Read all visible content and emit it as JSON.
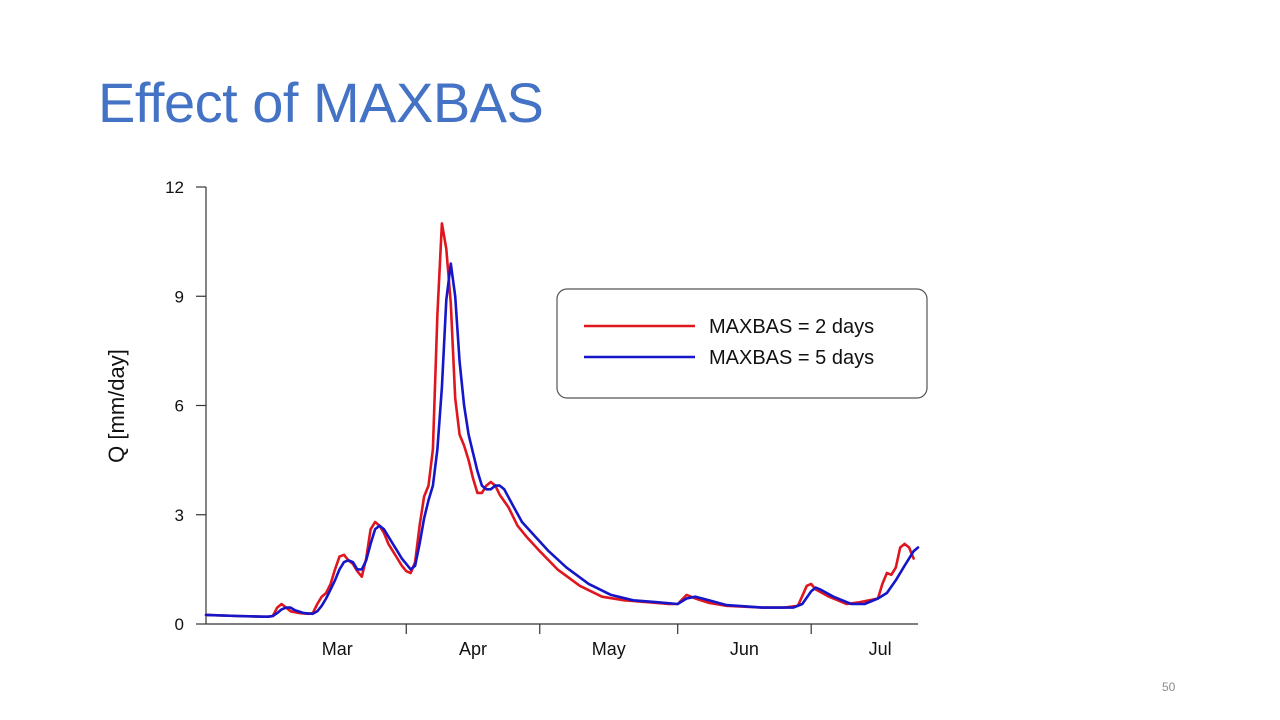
{
  "slide": {
    "title": "Effect of MAXBAS",
    "page_number": "50"
  },
  "colors": {
    "title": "#4472c4",
    "series_2": "#e0161f",
    "series_5": "#1515c9"
  },
  "chart_data": {
    "type": "line",
    "title": "",
    "xlabel": "",
    "ylabel": "Q [mm/day]",
    "xlim": [
      "03-01",
      "07-31"
    ],
    "ylim": [
      0,
      12
    ],
    "yticks": [
      0,
      3,
      6,
      9,
      12
    ],
    "xticks": [
      {
        "label": "Mar",
        "month_start": "03-01"
      },
      {
        "label": "Apr",
        "month_start": "04-01"
      },
      {
        "label": "May",
        "month_start": "05-01"
      },
      {
        "label": "Jun",
        "month_start": "06-01"
      },
      {
        "label": "Jul",
        "month_start": "07-01"
      }
    ],
    "grid": false,
    "legend_position": "top-right",
    "series": [
      {
        "name": "MAXBAS = 2 days",
        "color": "#e0161f",
        "points": [
          [
            "02-15",
            0.25
          ],
          [
            "02-22",
            0.22
          ],
          [
            "02-28",
            0.2
          ],
          [
            "03-01",
            0.2
          ],
          [
            "03-02",
            0.22
          ],
          [
            "03-03",
            0.45
          ],
          [
            "03-04",
            0.55
          ],
          [
            "03-05",
            0.45
          ],
          [
            "03-06",
            0.35
          ],
          [
            "03-08",
            0.3
          ],
          [
            "03-10",
            0.28
          ],
          [
            "03-11",
            0.3
          ],
          [
            "03-12",
            0.55
          ],
          [
            "03-13",
            0.75
          ],
          [
            "03-14",
            0.85
          ],
          [
            "03-15",
            1.1
          ],
          [
            "03-16",
            1.5
          ],
          [
            "03-17",
            1.85
          ],
          [
            "03-18",
            1.9
          ],
          [
            "03-19",
            1.75
          ],
          [
            "03-20",
            1.65
          ],
          [
            "03-21",
            1.45
          ],
          [
            "03-22",
            1.3
          ],
          [
            "03-23",
            1.8
          ],
          [
            "03-24",
            2.6
          ],
          [
            "03-25",
            2.8
          ],
          [
            "03-26",
            2.7
          ],
          [
            "03-27",
            2.5
          ],
          [
            "03-28",
            2.2
          ],
          [
            "03-29",
            2.0
          ],
          [
            "03-30",
            1.8
          ],
          [
            "03-31",
            1.6
          ],
          [
            "04-01",
            1.45
          ],
          [
            "04-02",
            1.4
          ],
          [
            "04-03",
            1.7
          ],
          [
            "04-04",
            2.7
          ],
          [
            "04-05",
            3.5
          ],
          [
            "04-06",
            3.8
          ],
          [
            "04-07",
            4.8
          ],
          [
            "04-08",
            8.5
          ],
          [
            "04-09",
            11.0
          ],
          [
            "04-10",
            10.3
          ],
          [
            "04-11",
            8.8
          ],
          [
            "04-12",
            6.2
          ],
          [
            "04-13",
            5.2
          ],
          [
            "04-14",
            4.9
          ],
          [
            "04-15",
            4.5
          ],
          [
            "04-16",
            4.0
          ],
          [
            "04-17",
            3.6
          ],
          [
            "04-18",
            3.6
          ],
          [
            "04-19",
            3.8
          ],
          [
            "04-20",
            3.9
          ],
          [
            "04-21",
            3.8
          ],
          [
            "04-22",
            3.55
          ],
          [
            "04-24",
            3.2
          ],
          [
            "04-26",
            2.7
          ],
          [
            "04-28",
            2.4
          ],
          [
            "05-01",
            2.0
          ],
          [
            "05-05",
            1.5
          ],
          [
            "05-10",
            1.05
          ],
          [
            "05-15",
            0.75
          ],
          [
            "05-20",
            0.65
          ],
          [
            "05-25",
            0.6
          ],
          [
            "05-30",
            0.55
          ],
          [
            "06-01",
            0.55
          ],
          [
            "06-03",
            0.8
          ],
          [
            "06-05",
            0.7
          ],
          [
            "06-08",
            0.58
          ],
          [
            "06-12",
            0.5
          ],
          [
            "06-20",
            0.45
          ],
          [
            "06-25",
            0.45
          ],
          [
            "06-28",
            0.5
          ],
          [
            "06-30",
            1.05
          ],
          [
            "07-01",
            1.1
          ],
          [
            "07-02",
            0.95
          ],
          [
            "07-05",
            0.75
          ],
          [
            "07-09",
            0.55
          ],
          [
            "07-12",
            0.6
          ],
          [
            "07-16",
            0.7
          ],
          [
            "07-17",
            1.1
          ],
          [
            "07-18",
            1.4
          ],
          [
            "07-19",
            1.35
          ],
          [
            "07-20",
            1.55
          ],
          [
            "07-21",
            2.1
          ],
          [
            "07-22",
            2.2
          ],
          [
            "07-23",
            2.1
          ],
          [
            "07-24",
            1.8
          ]
        ]
      },
      {
        "name": "MAXBAS = 5 days",
        "color": "#1515c9",
        "points": [
          [
            "02-15",
            0.25
          ],
          [
            "02-22",
            0.22
          ],
          [
            "02-28",
            0.2
          ],
          [
            "03-01",
            0.2
          ],
          [
            "03-02",
            0.22
          ],
          [
            "03-03",
            0.3
          ],
          [
            "03-04",
            0.4
          ],
          [
            "03-05",
            0.45
          ],
          [
            "03-06",
            0.45
          ],
          [
            "03-07",
            0.38
          ],
          [
            "03-09",
            0.3
          ],
          [
            "03-11",
            0.28
          ],
          [
            "03-12",
            0.35
          ],
          [
            "03-13",
            0.5
          ],
          [
            "03-14",
            0.7
          ],
          [
            "03-15",
            0.95
          ],
          [
            "03-16",
            1.2
          ],
          [
            "03-17",
            1.5
          ],
          [
            "03-18",
            1.7
          ],
          [
            "03-19",
            1.75
          ],
          [
            "03-20",
            1.7
          ],
          [
            "03-21",
            1.5
          ],
          [
            "03-22",
            1.5
          ],
          [
            "03-23",
            1.75
          ],
          [
            "03-24",
            2.2
          ],
          [
            "03-25",
            2.6
          ],
          [
            "03-26",
            2.7
          ],
          [
            "03-27",
            2.6
          ],
          [
            "03-28",
            2.4
          ],
          [
            "03-29",
            2.2
          ],
          [
            "03-30",
            2.0
          ],
          [
            "03-31",
            1.8
          ],
          [
            "04-01",
            1.65
          ],
          [
            "04-02",
            1.5
          ],
          [
            "04-03",
            1.6
          ],
          [
            "04-04",
            2.2
          ],
          [
            "04-05",
            2.9
          ],
          [
            "04-06",
            3.4
          ],
          [
            "04-07",
            3.8
          ],
          [
            "04-08",
            4.8
          ],
          [
            "04-09",
            6.5
          ],
          [
            "04-10",
            8.9
          ],
          [
            "04-11",
            9.9
          ],
          [
            "04-12",
            9.0
          ],
          [
            "04-13",
            7.2
          ],
          [
            "04-14",
            6.0
          ],
          [
            "04-15",
            5.2
          ],
          [
            "04-16",
            4.7
          ],
          [
            "04-17",
            4.2
          ],
          [
            "04-18",
            3.8
          ],
          [
            "04-19",
            3.7
          ],
          [
            "04-20",
            3.7
          ],
          [
            "04-21",
            3.8
          ],
          [
            "04-22",
            3.8
          ],
          [
            "04-23",
            3.7
          ],
          [
            "04-25",
            3.25
          ],
          [
            "04-27",
            2.8
          ],
          [
            "04-30",
            2.4
          ],
          [
            "05-03",
            2.0
          ],
          [
            "05-07",
            1.55
          ],
          [
            "05-12",
            1.1
          ],
          [
            "05-17",
            0.8
          ],
          [
            "05-22",
            0.65
          ],
          [
            "05-27",
            0.6
          ],
          [
            "06-01",
            0.55
          ],
          [
            "06-03",
            0.7
          ],
          [
            "06-05",
            0.75
          ],
          [
            "06-08",
            0.65
          ],
          [
            "06-12",
            0.52
          ],
          [
            "06-20",
            0.45
          ],
          [
            "06-27",
            0.45
          ],
          [
            "06-29",
            0.55
          ],
          [
            "07-01",
            0.9
          ],
          [
            "07-02",
            1.0
          ],
          [
            "07-03",
            0.95
          ],
          [
            "07-06",
            0.75
          ],
          [
            "07-10",
            0.55
          ],
          [
            "07-13",
            0.55
          ],
          [
            "07-16",
            0.7
          ],
          [
            "07-18",
            0.85
          ],
          [
            "07-20",
            1.2
          ],
          [
            "07-22",
            1.6
          ],
          [
            "07-24",
            2.0
          ],
          [
            "07-25",
            2.1
          ],
          [
            "07-26",
            1.9
          ]
        ]
      }
    ]
  }
}
